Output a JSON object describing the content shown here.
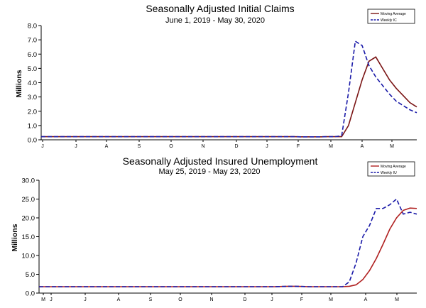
{
  "chart_data": [
    {
      "type": "line",
      "title": "Seasonally Adjusted Initial Claims",
      "subtitle": "June 1, 2019 - May 30, 2020",
      "ylabel": "Millions",
      "ylim": [
        0,
        8
      ],
      "yticks": [
        "0.0",
        "1.0",
        "2.0",
        "3.0",
        "4.0",
        "5.0",
        "6.0",
        "7.0",
        "8.0"
      ],
      "xticks": [
        "J",
        "J",
        "A",
        "S",
        "O",
        "N",
        "D",
        "J",
        "F",
        "M",
        "A",
        "M"
      ],
      "legend": "top-right",
      "colors": {
        "moving_average": "#7a1414",
        "weekly": "#1a1aa8"
      },
      "series": [
        {
          "name": "Moving Average",
          "values": [
            0.22,
            0.22,
            0.22,
            0.22,
            0.22,
            0.22,
            0.22,
            0.22,
            0.22,
            0.22,
            0.22,
            0.22,
            0.22,
            0.22,
            0.22,
            0.22,
            0.22,
            0.22,
            0.22,
            0.22,
            0.22,
            0.22,
            0.22,
            0.22,
            0.22,
            0.22,
            0.22,
            0.22,
            0.22,
            0.22,
            0.22,
            0.22,
            0.22,
            0.22,
            0.22,
            0.22,
            0.22,
            0.22,
            0.21,
            0.21,
            0.21,
            0.21,
            0.22,
            0.22,
            0.22,
            1.0,
            2.6,
            4.2,
            5.5,
            5.8,
            5.0,
            4.2,
            3.6,
            3.1,
            2.6,
            2.3
          ]
        },
        {
          "name": "Weekly IC",
          "values": [
            0.22,
            0.22,
            0.22,
            0.22,
            0.22,
            0.22,
            0.22,
            0.22,
            0.22,
            0.22,
            0.22,
            0.22,
            0.22,
            0.22,
            0.22,
            0.22,
            0.22,
            0.22,
            0.22,
            0.22,
            0.22,
            0.22,
            0.22,
            0.22,
            0.22,
            0.22,
            0.22,
            0.22,
            0.22,
            0.22,
            0.22,
            0.22,
            0.22,
            0.22,
            0.22,
            0.22,
            0.22,
            0.22,
            0.21,
            0.21,
            0.21,
            0.21,
            0.22,
            0.22,
            0.28,
            3.3,
            6.9,
            6.6,
            5.2,
            4.4,
            3.8,
            3.2,
            2.7,
            2.4,
            2.1,
            1.9
          ]
        }
      ]
    },
    {
      "type": "line",
      "title": "Seasonally Adjusted Insured Unemployment",
      "subtitle": "May 25, 2019 - May 23, 2020",
      "ylabel": "Millions",
      "ylim": [
        0,
        30
      ],
      "yticks": [
        "0.0",
        "5.0",
        "10.0",
        "15.0",
        "20.0",
        "25.0",
        "30.0"
      ],
      "xticks": [
        "M",
        "J",
        "J",
        "A",
        "S",
        "O",
        "N",
        "D",
        "J",
        "F",
        "M",
        "A",
        "M"
      ],
      "legend": "top-right",
      "colors": {
        "moving_average": "#b02020",
        "weekly": "#1a1aa8"
      },
      "series": [
        {
          "name": "Moving Average",
          "values": [
            1.7,
            1.7,
            1.7,
            1.7,
            1.7,
            1.7,
            1.7,
            1.7,
            1.7,
            1.7,
            1.7,
            1.7,
            1.7,
            1.7,
            1.7,
            1.7,
            1.7,
            1.7,
            1.7,
            1.7,
            1.7,
            1.7,
            1.7,
            1.7,
            1.7,
            1.7,
            1.7,
            1.7,
            1.7,
            1.7,
            1.7,
            1.7,
            1.7,
            1.7,
            1.7,
            1.7,
            1.75,
            1.8,
            1.8,
            1.75,
            1.7,
            1.7,
            1.7,
            1.7,
            1.7,
            1.7,
            1.8,
            2.2,
            3.6,
            6.0,
            9.2,
            13.0,
            17.0,
            20.0,
            22.0,
            22.6,
            22.5
          ]
        },
        {
          "name": "Weekly IU",
          "values": [
            1.7,
            1.7,
            1.7,
            1.7,
            1.7,
            1.7,
            1.7,
            1.7,
            1.7,
            1.7,
            1.7,
            1.7,
            1.7,
            1.7,
            1.7,
            1.7,
            1.7,
            1.7,
            1.7,
            1.7,
            1.7,
            1.7,
            1.7,
            1.7,
            1.7,
            1.7,
            1.7,
            1.7,
            1.7,
            1.7,
            1.7,
            1.7,
            1.7,
            1.7,
            1.7,
            1.7,
            1.75,
            1.8,
            1.8,
            1.75,
            1.7,
            1.7,
            1.7,
            1.7,
            1.7,
            1.7,
            3.0,
            8.0,
            15.0,
            18.0,
            22.5,
            22.5,
            23.5,
            25.0,
            21.0,
            21.5,
            21.0
          ]
        }
      ]
    }
  ]
}
